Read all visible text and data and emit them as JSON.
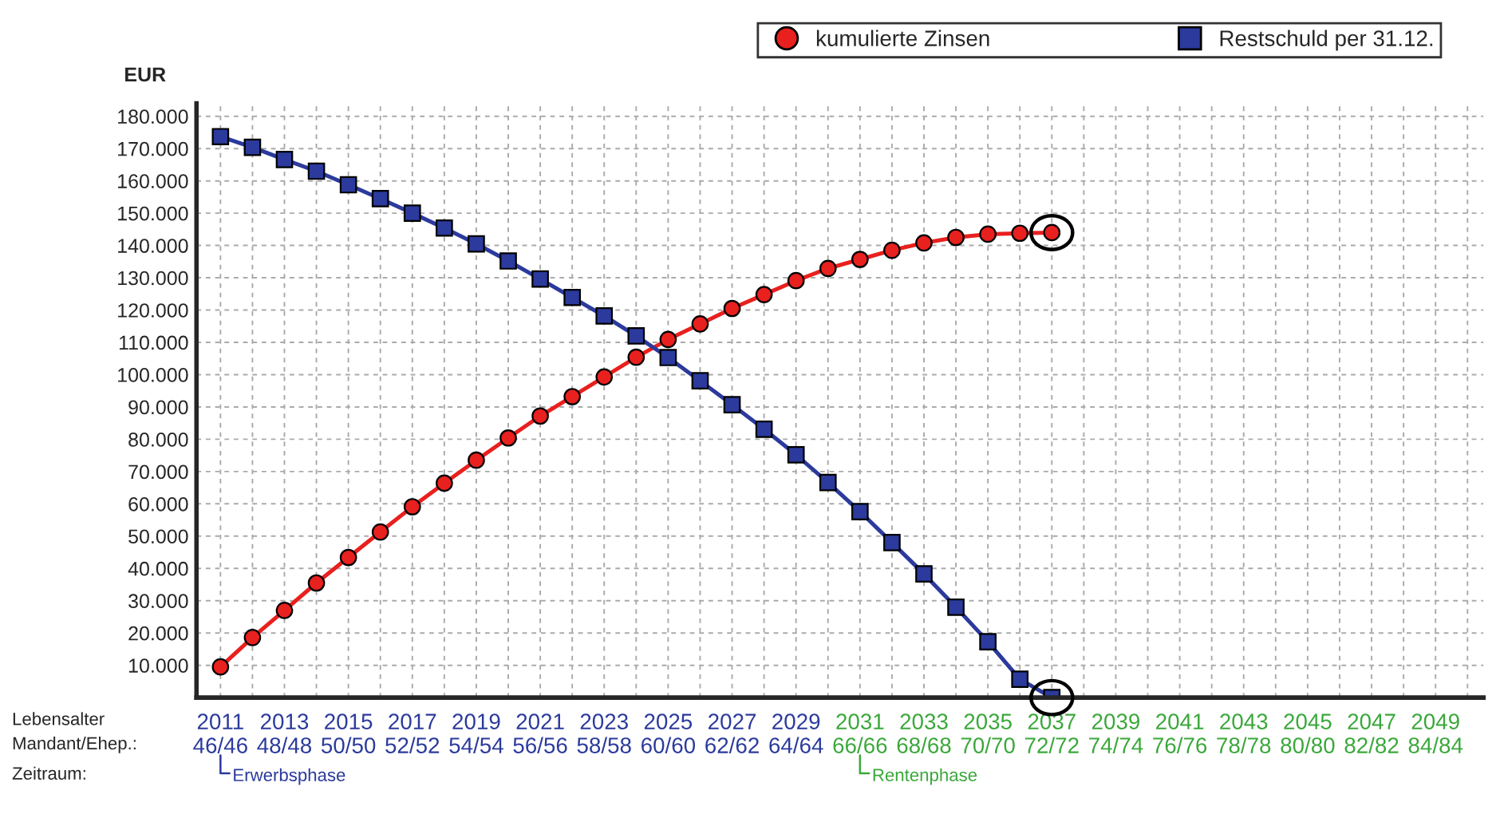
{
  "chart_data": {
    "type": "line",
    "ylabel": "EUR",
    "categories": [
      "2011\n46/46",
      null,
      "2013\n48/48",
      null,
      "2015\n50/50",
      null,
      "2017\n52/52",
      null,
      "2019\n54/54",
      null,
      "2021\n56/56",
      null,
      "2023\n58/58",
      null,
      "2025\n60/60",
      null,
      "2027\n62/62",
      null,
      "2029\n64/64",
      null,
      "2031\n66/66",
      null,
      "2033\n68/68",
      null,
      "2035\n70/70",
      null,
      "2037\n72/72",
      null,
      "2039\n74/74",
      null,
      "2041\n76/76",
      null,
      "2043\n78/78",
      null,
      "2045\n80/80",
      null,
      "2047\n82/82",
      null,
      "2049\n84/84",
      null
    ],
    "series": [
      {
        "name": "kumulierte Zinsen",
        "color": "#e8201e",
        "marker": "circle",
        "values": [
          9500,
          18600,
          27000,
          35500,
          43400,
          51300,
          59100,
          66400,
          73500,
          80400,
          87200,
          93200,
          99300,
          105400,
          110900,
          115700,
          120500,
          124800,
          129100,
          132900,
          135700,
          138500,
          140800,
          142500,
          143500,
          143800,
          144000,
          null,
          null,
          null,
          null,
          null,
          null,
          null,
          null,
          null,
          null,
          null,
          null,
          null
        ]
      },
      {
        "name": "Restschuld per 31.12.",
        "color": "#2b3a9c",
        "marker": "square",
        "values": [
          173700,
          170400,
          166600,
          163000,
          158800,
          154500,
          150000,
          145400,
          140500,
          135200,
          129600,
          123900,
          118200,
          112000,
          105300,
          98100,
          90700,
          83100,
          75200,
          66600,
          57600,
          48000,
          38300,
          28000,
          17300,
          5700,
          0,
          null,
          null,
          null,
          null,
          null,
          null,
          null,
          null,
          null,
          null,
          null,
          null,
          null
        ]
      }
    ],
    "ylim": [
      0,
      184000
    ],
    "yticks": [
      {
        "value": 10000,
        "label": "10.000"
      },
      {
        "value": 20000,
        "label": "20.000"
      },
      {
        "value": 30000,
        "label": "30.000"
      },
      {
        "value": 40000,
        "label": "40.000"
      },
      {
        "value": 50000,
        "label": "50.000"
      },
      {
        "value": 60000,
        "label": "60.000"
      },
      {
        "value": 70000,
        "label": "70.000"
      },
      {
        "value": 80000,
        "label": "80.000"
      },
      {
        "value": 90000,
        "label": "90.000"
      },
      {
        "value": 100000,
        "label": "100.000"
      },
      {
        "value": 110000,
        "label": "110.000"
      },
      {
        "value": 120000,
        "label": "120.000"
      },
      {
        "value": 130000,
        "label": "130.000"
      },
      {
        "value": 140000,
        "label": "140.000"
      },
      {
        "value": 150000,
        "label": "150.000"
      },
      {
        "value": 160000,
        "label": "160.000"
      },
      {
        "value": 170000,
        "label": "170.000"
      },
      {
        "value": 180000,
        "label": "180.000"
      }
    ],
    "annotations": [
      "Lebensalter",
      "Mandant/Ehep.:",
      "Zeitraum:",
      "Erwerbsphase",
      "Rentenphase"
    ],
    "grid": true,
    "legend": "top right",
    "line_style": "solid"
  }
}
